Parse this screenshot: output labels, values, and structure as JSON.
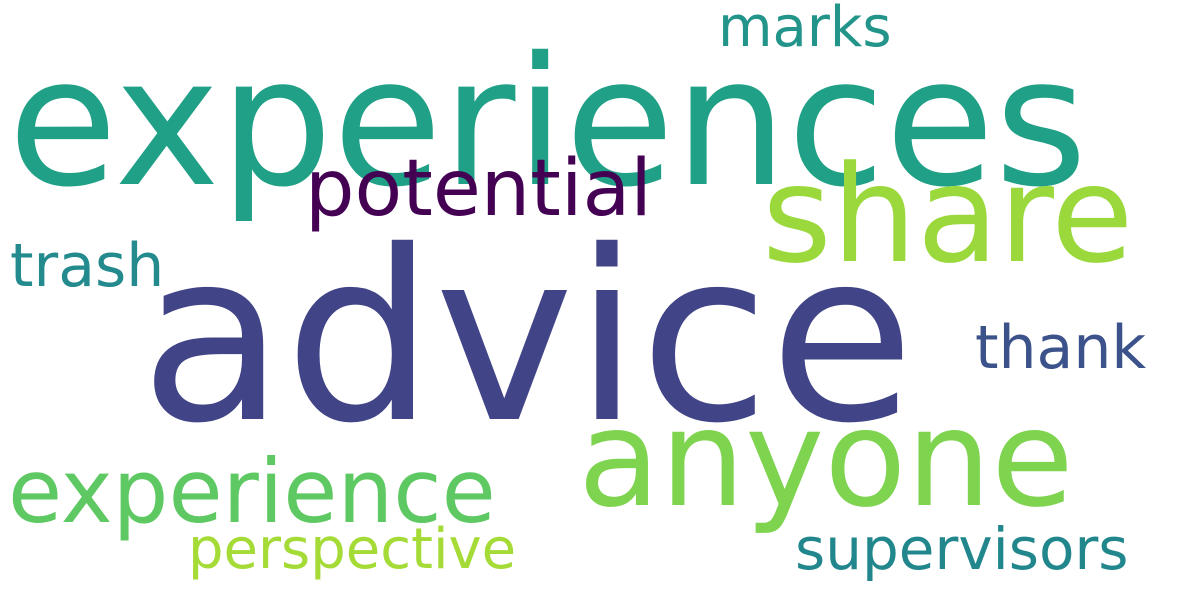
{
  "words": {
    "experiences": {
      "text": "experiences",
      "color": "#20a086"
    },
    "advice": {
      "text": "advice",
      "color": "#414487"
    },
    "share": {
      "text": "share",
      "color": "#9ad83b"
    },
    "anyone": {
      "text": "anyone",
      "color": "#7ed34f"
    },
    "potential": {
      "text": "potential",
      "color": "#440154"
    },
    "experience": {
      "text": "experience",
      "color": "#5ec962"
    },
    "marks": {
      "text": "marks",
      "color": "#22948a"
    },
    "trash": {
      "text": "trash",
      "color": "#238a8d"
    },
    "thank": {
      "text": "thank",
      "color": "#3b528b"
    },
    "supervisors": {
      "text": "supervisors",
      "color": "#21878d"
    },
    "perspective": {
      "text": "perspective",
      "color": "#a5db36"
    }
  }
}
